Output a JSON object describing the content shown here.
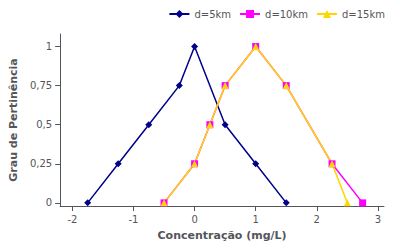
{
  "chart_data": {
    "type": "line",
    "xlabel": "Concentração (mg/L)",
    "ylabel": "Grau de Pertinência",
    "series": [
      {
        "name": "d=5km",
        "color": "#00008B",
        "marker": "diamond",
        "x": [
          -1.75,
          -1.25,
          -0.75,
          -0.25,
          0.0,
          0.5,
          1.0,
          1.5
        ],
        "values": [
          0,
          0.25,
          0.5,
          0.75,
          1.0,
          0.5,
          0.25,
          0.0
        ]
      },
      {
        "name": "d=10km",
        "color": "#FF00FF",
        "marker": "square",
        "x": [
          -0.5,
          0.0,
          0.25,
          0.5,
          1.0,
          1.5,
          2.25,
          2.75
        ],
        "values": [
          0,
          0.25,
          0.5,
          0.75,
          1.0,
          0.75,
          0.25,
          0.0
        ]
      },
      {
        "name": "d=15km",
        "color": "#FFD700",
        "marker": "triangle",
        "x": [
          -0.5,
          0.0,
          0.25,
          0.5,
          1.0,
          1.5,
          2.25,
          2.5
        ],
        "values": [
          0,
          0.25,
          0.5,
          0.75,
          1.0,
          0.75,
          0.25,
          0.0
        ]
      }
    ],
    "xlim": [
      -2.2,
      3.1
    ],
    "xticks": [
      -2,
      -1,
      0,
      1,
      2,
      3
    ],
    "ylim": [
      -0.02,
      1.08
    ],
    "yticks": [
      0,
      {
        "value": 0.25,
        "label": "0,25"
      },
      {
        "value": 0.5,
        "label": "0,5"
      },
      {
        "value": 0.75,
        "label": "0,75"
      },
      1
    ],
    "grid": false,
    "legend": "upper right"
  }
}
